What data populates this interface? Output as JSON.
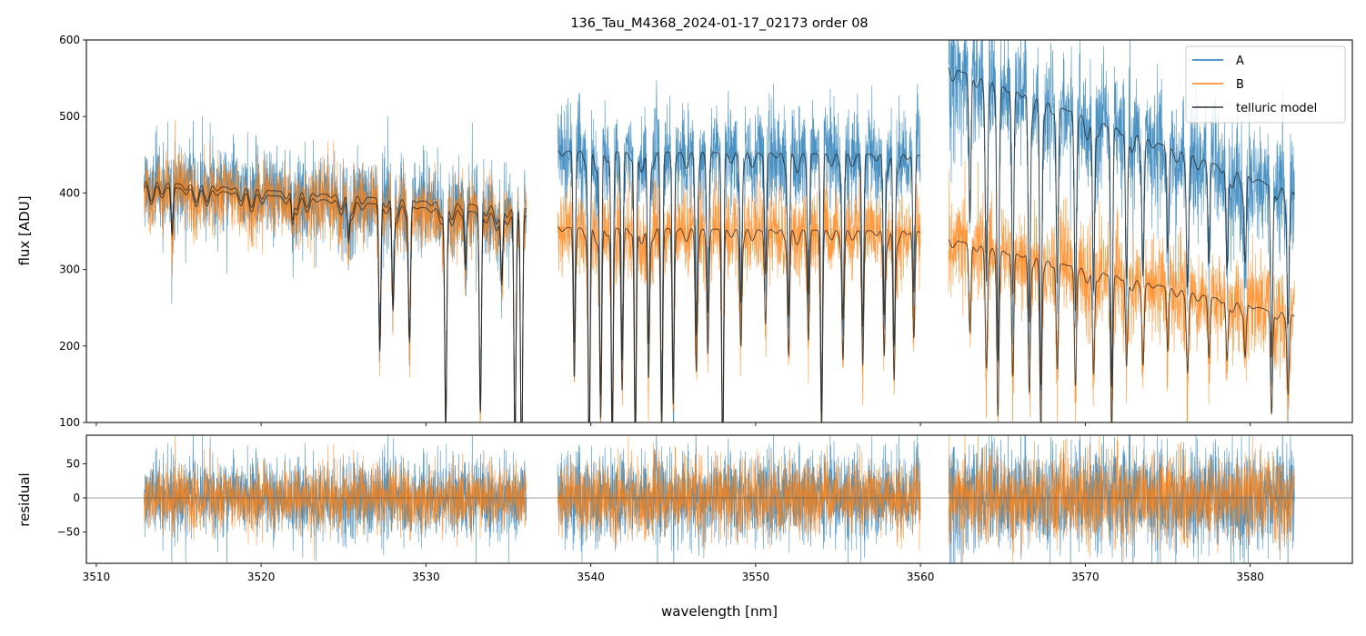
{
  "chart_data": {
    "type": "line",
    "title": "136_Tau_M4368_2024-01-17_02173  order 08",
    "xlabel": "wavelength [nm]",
    "xlim": [
      3509.4,
      3586.2
    ],
    "xticks": [
      "3510",
      "3520",
      "3530",
      "3540",
      "3550",
      "3560",
      "3570",
      "3580"
    ],
    "xtick_values": [
      3510,
      3520,
      3530,
      3540,
      3550,
      3560,
      3570,
      3580
    ],
    "top_panel": {
      "ylabel": "flux [ADU]",
      "ylim": [
        100,
        600
      ],
      "yticks": [
        "100",
        "200",
        "300",
        "400",
        "500",
        "600"
      ],
      "ytick_values": [
        100,
        200,
        300,
        400,
        500,
        600
      ]
    },
    "bottom_panel": {
      "ylabel": "residual",
      "ylim": [
        -96,
        92
      ],
      "yticks": [
        "−50",
        "0",
        "50"
      ],
      "ytick_values": [
        -50,
        0,
        50
      ],
      "zero_line": true
    },
    "legend": {
      "placement": "top-right",
      "entries": [
        {
          "label": "A",
          "color": "#1f77b4"
        },
        {
          "label": "B",
          "color": "#ff7f0e"
        },
        {
          "label": "telluric model",
          "color": "#333333"
        }
      ]
    },
    "segments": [
      {
        "x": [
          3512.9,
          3536.1
        ],
        "A_continuum": [
          415,
          380
        ],
        "B_continuum": [
          410,
          370
        ],
        "noise_sigma": 28
      },
      {
        "x": [
          3538.0,
          3560.0
        ],
        "A_continuum": [
          455,
          450
        ],
        "B_continuum": [
          355,
          350
        ],
        "noise_sigma": 32
      },
      {
        "x": [
          3561.7,
          3582.7
        ],
        "A_continuum": [
          565,
          400
        ],
        "B_continuum": [
          340,
          240
        ],
        "noise_sigma": 38
      }
    ],
    "telluric_lines": [
      {
        "center": 3514.6,
        "depth": 0.15
      },
      {
        "center": 3521.9,
        "depth": 0.08
      },
      {
        "center": 3525.3,
        "depth": 0.12
      },
      {
        "center": 3527.2,
        "depth": 0.5
      },
      {
        "center": 3528.0,
        "depth": 0.35
      },
      {
        "center": 3529.0,
        "depth": 0.45
      },
      {
        "center": 3531.2,
        "depth": 0.75
      },
      {
        "center": 3532.4,
        "depth": 0.2
      },
      {
        "center": 3533.3,
        "depth": 0.7
      },
      {
        "center": 3534.6,
        "depth": 0.25
      },
      {
        "center": 3535.4,
        "depth": 0.8
      },
      {
        "center": 3535.8,
        "depth": 0.9
      },
      {
        "center": 3539.0,
        "depth": 0.55
      },
      {
        "center": 3539.9,
        "depth": 0.85
      },
      {
        "center": 3540.6,
        "depth": 0.7
      },
      {
        "center": 3541.3,
        "depth": 0.8
      },
      {
        "center": 3541.9,
        "depth": 0.6
      },
      {
        "center": 3542.7,
        "depth": 0.8
      },
      {
        "center": 3543.5,
        "depth": 0.55
      },
      {
        "center": 3544.3,
        "depth": 0.75
      },
      {
        "center": 3545.0,
        "depth": 0.65
      },
      {
        "center": 3546.4,
        "depth": 0.5
      },
      {
        "center": 3547.1,
        "depth": 0.45
      },
      {
        "center": 3548.0,
        "depth": 0.85
      },
      {
        "center": 3549.1,
        "depth": 0.4
      },
      {
        "center": 3550.6,
        "depth": 0.35
      },
      {
        "center": 3552.0,
        "depth": 0.45
      },
      {
        "center": 3553.2,
        "depth": 0.4
      },
      {
        "center": 3554.0,
        "depth": 0.75
      },
      {
        "center": 3555.3,
        "depth": 0.45
      },
      {
        "center": 3556.5,
        "depth": 0.5
      },
      {
        "center": 3557.8,
        "depth": 0.45
      },
      {
        "center": 3558.4,
        "depth": 0.55
      },
      {
        "center": 3559.6,
        "depth": 0.4
      },
      {
        "center": 3563.0,
        "depth": 0.35
      },
      {
        "center": 3564.0,
        "depth": 0.45
      },
      {
        "center": 3564.7,
        "depth": 0.65
      },
      {
        "center": 3565.6,
        "depth": 0.5
      },
      {
        "center": 3566.6,
        "depth": 0.55
      },
      {
        "center": 3567.3,
        "depth": 0.7
      },
      {
        "center": 3568.3,
        "depth": 0.45
      },
      {
        "center": 3569.4,
        "depth": 0.5
      },
      {
        "center": 3570.5,
        "depth": 0.45
      },
      {
        "center": 3571.6,
        "depth": 0.7
      },
      {
        "center": 3572.5,
        "depth": 0.4
      },
      {
        "center": 3573.5,
        "depth": 0.35
      },
      {
        "center": 3575.0,
        "depth": 0.3
      },
      {
        "center": 3576.2,
        "depth": 0.35
      },
      {
        "center": 3577.5,
        "depth": 0.3
      },
      {
        "center": 3578.6,
        "depth": 0.3
      },
      {
        "center": 3579.7,
        "depth": 0.25
      },
      {
        "center": 3581.3,
        "depth": 0.55
      },
      {
        "center": 3582.3,
        "depth": 0.4
      }
    ]
  }
}
